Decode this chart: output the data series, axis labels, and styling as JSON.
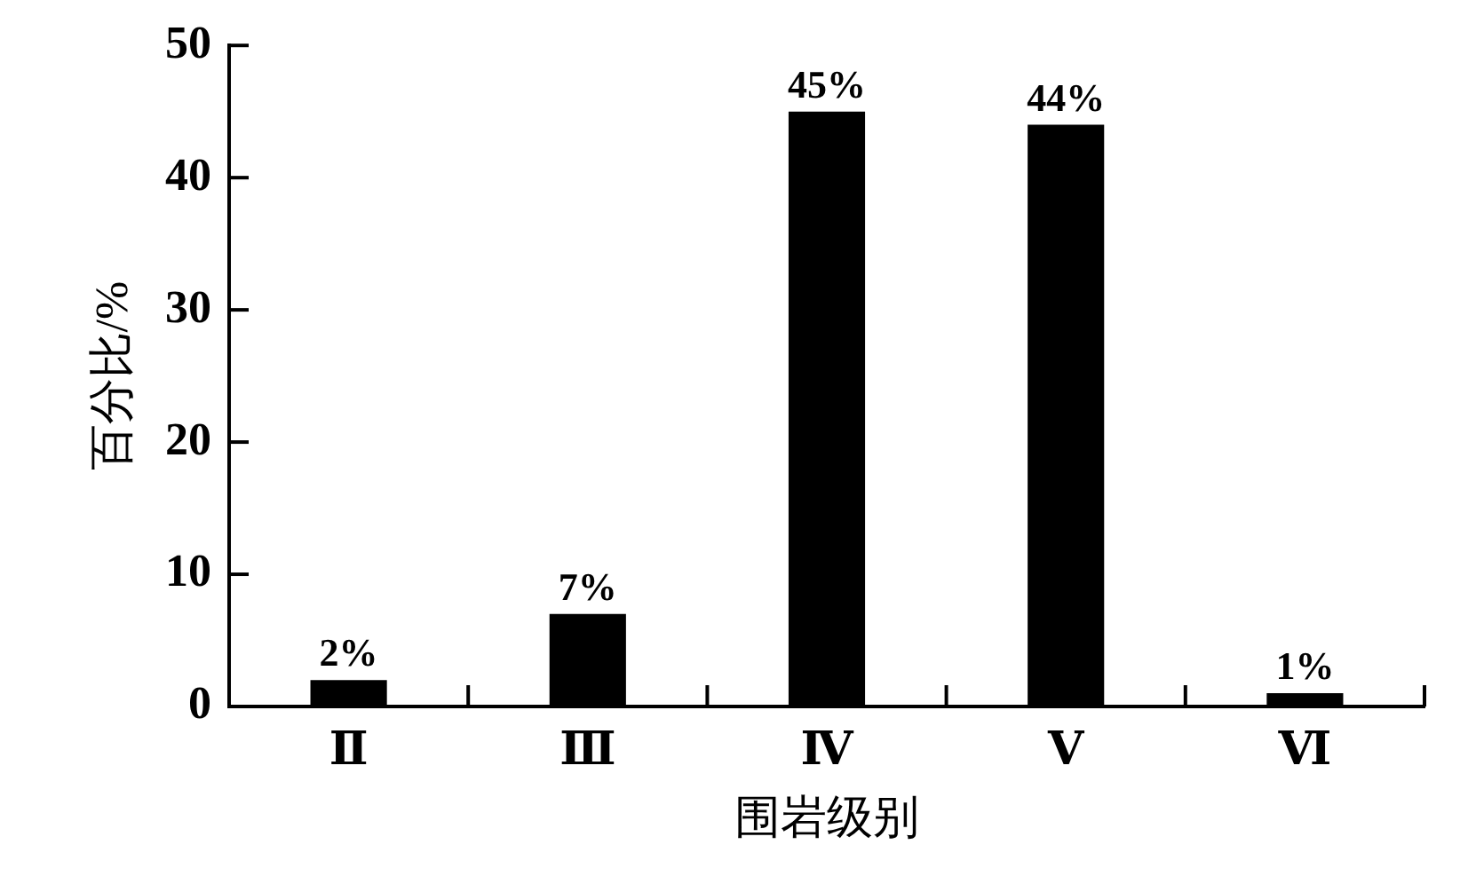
{
  "chart_data": {
    "type": "bar",
    "xlabel": "围岩级别",
    "ylabel": "百分比/%",
    "categories": [
      "Ⅱ",
      "Ⅲ",
      "Ⅳ",
      "Ⅴ",
      "Ⅵ"
    ],
    "values": [
      2,
      7,
      45,
      44,
      1
    ],
    "value_labels": [
      "2%",
      "7%",
      "45%",
      "44%",
      "1%"
    ],
    "color": "#000000",
    "ylim": [
      0,
      50
    ],
    "yticks": [
      0,
      10,
      20,
      30,
      40,
      50
    ],
    "grid": false
  }
}
